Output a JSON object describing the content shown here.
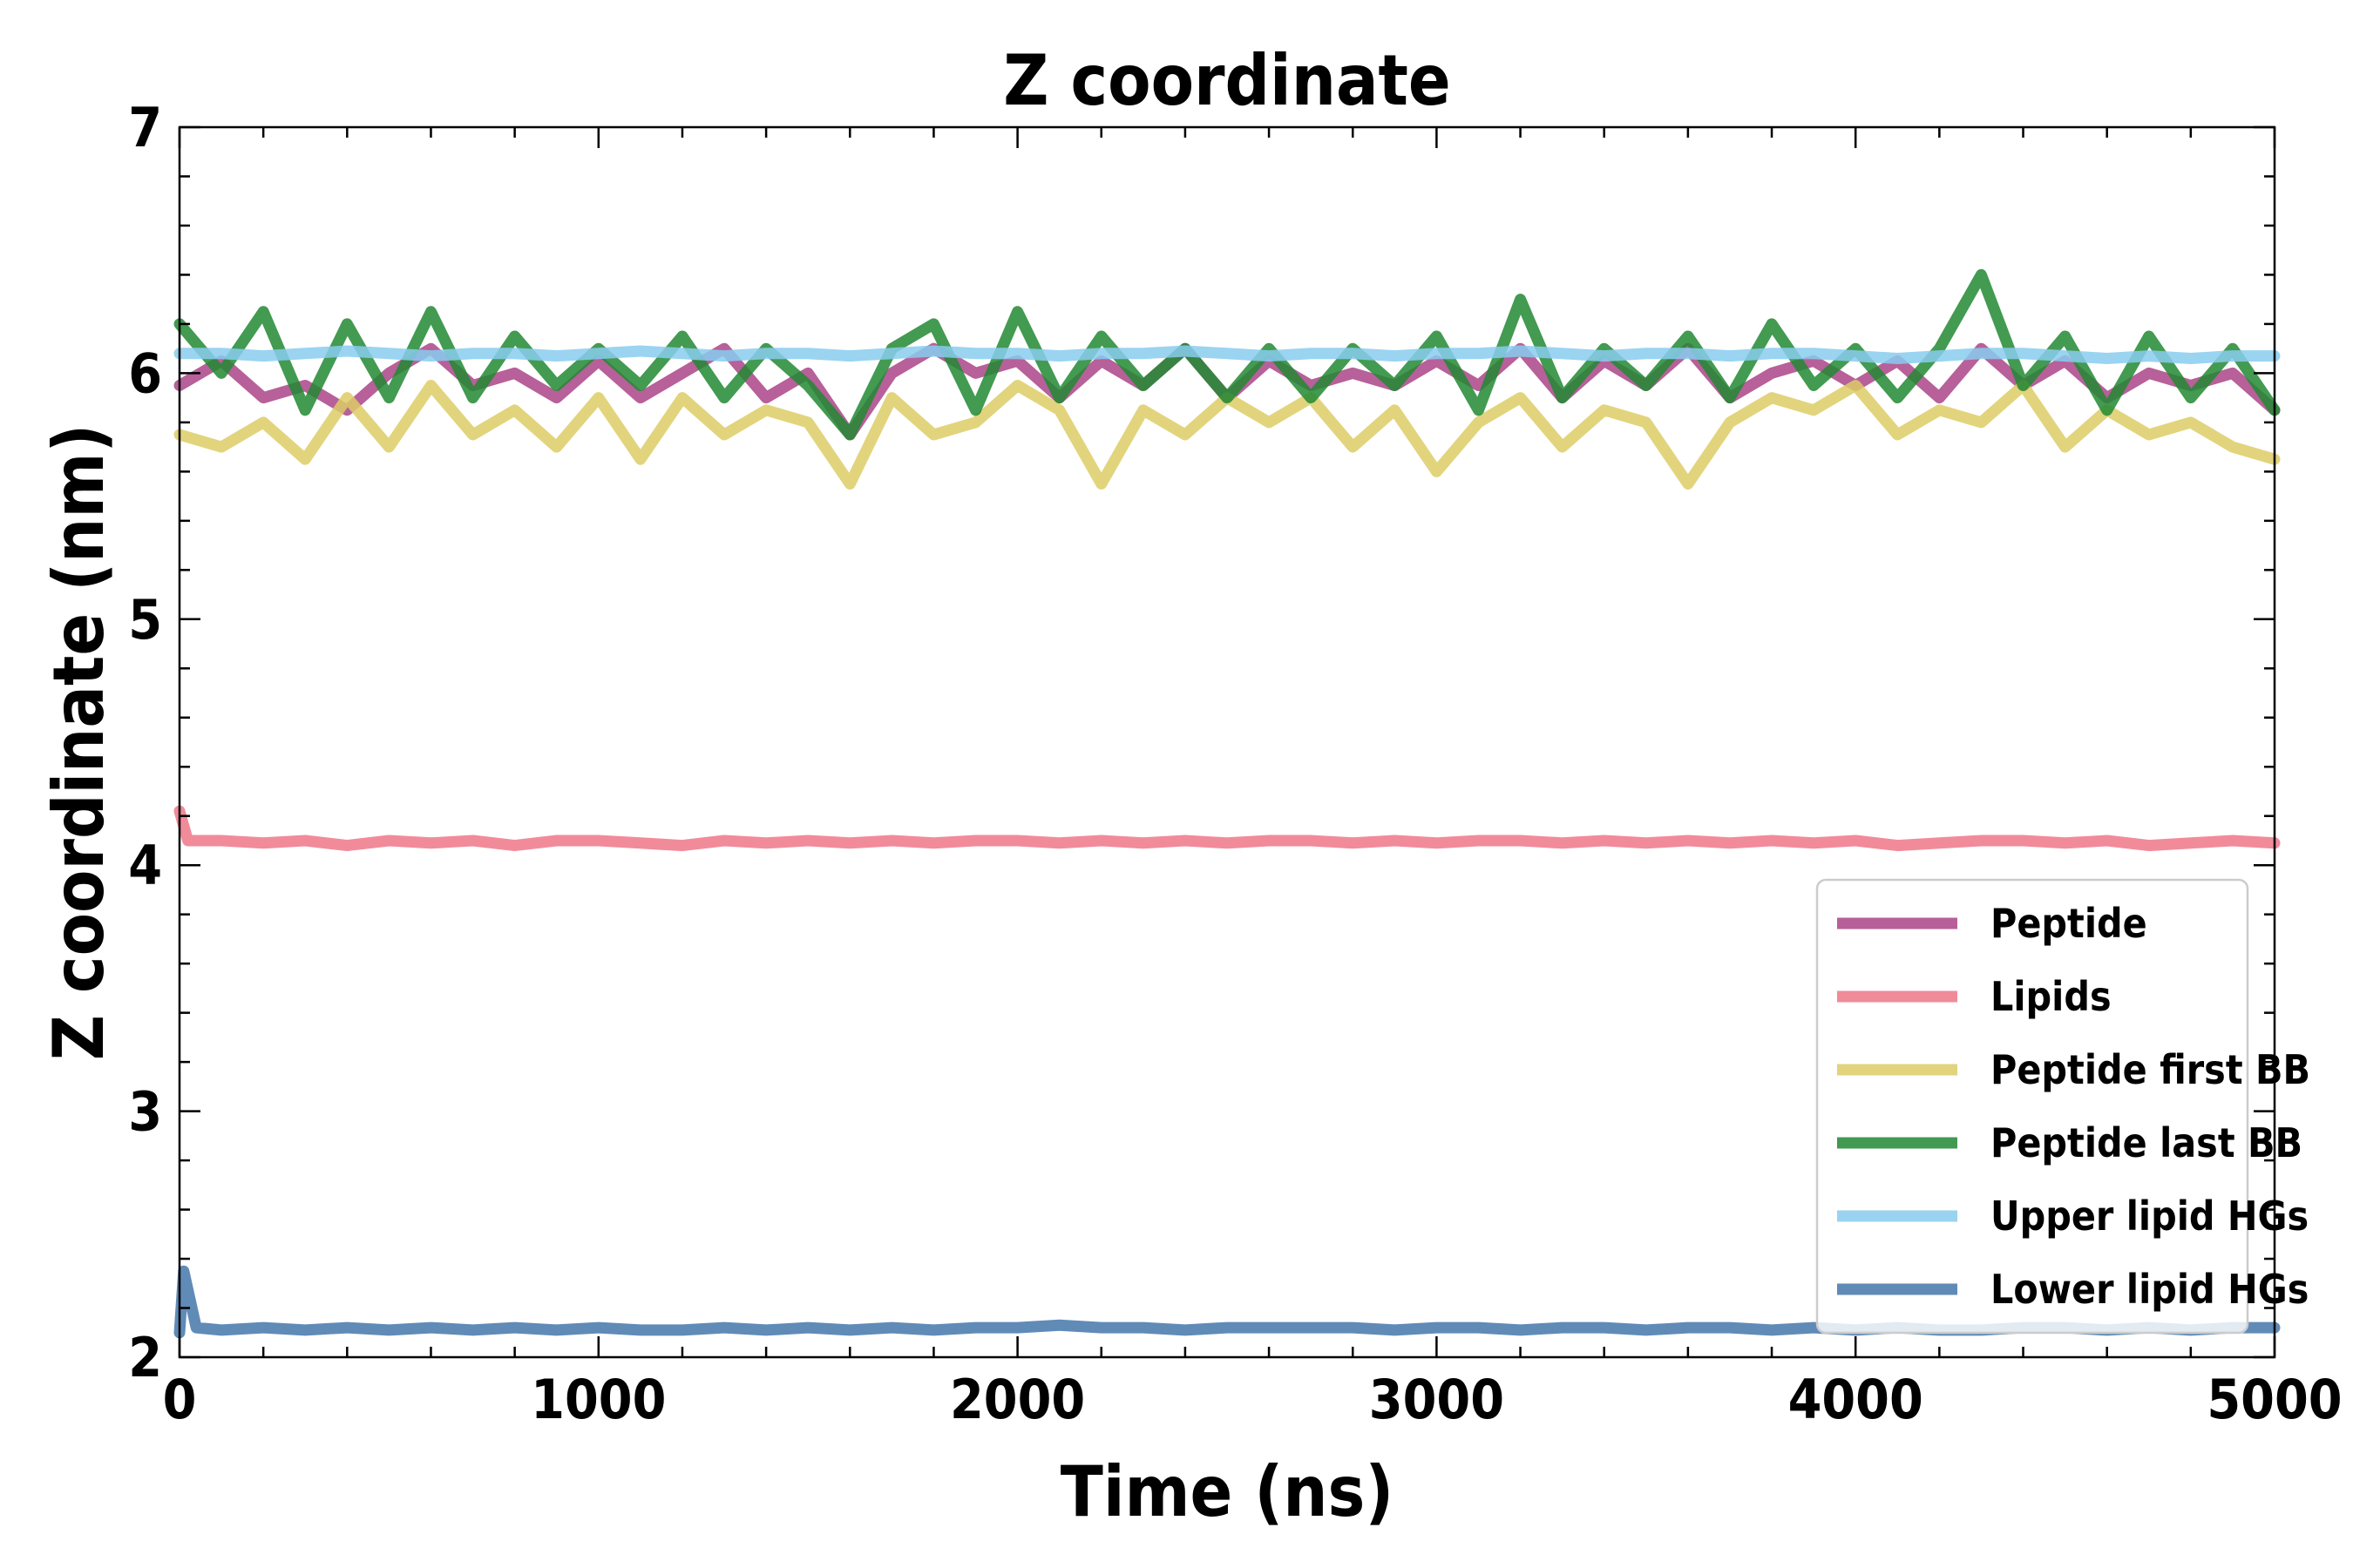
{
  "chart_data": {
    "type": "line",
    "title": "Z coordinate",
    "xlabel": "Time (ns)",
    "ylabel": "Z coordinate (nm)",
    "xlim": [
      0,
      5000
    ],
    "ylim": [
      2,
      7
    ],
    "xticks": [
      0,
      1000,
      2000,
      3000,
      4000,
      5000
    ],
    "yticks": [
      2,
      3,
      4,
      5,
      6,
      7
    ],
    "grid": false,
    "legend_position": "bottom-right",
    "series": [
      {
        "name": "Peptide",
        "color": "#aa4488",
        "x": [
          0,
          100,
          200,
          300,
          400,
          500,
          600,
          700,
          800,
          900,
          1000,
          1100,
          1200,
          1300,
          1400,
          1500,
          1600,
          1700,
          1800,
          1900,
          2000,
          2100,
          2200,
          2300,
          2400,
          2500,
          2600,
          2700,
          2800,
          2900,
          3000,
          3100,
          3200,
          3300,
          3400,
          3500,
          3600,
          3700,
          3800,
          3900,
          4000,
          4100,
          4200,
          4300,
          4400,
          4500,
          4600,
          4700,
          4800,
          4900,
          5000
        ],
        "y": [
          5.95,
          6.05,
          5.9,
          5.95,
          5.85,
          6.0,
          6.1,
          5.95,
          6.0,
          5.9,
          6.05,
          5.9,
          6.0,
          6.1,
          5.9,
          6.0,
          5.75,
          6.0,
          6.1,
          6.0,
          6.05,
          5.9,
          6.05,
          5.95,
          6.1,
          5.9,
          6.05,
          5.95,
          6.0,
          5.95,
          6.05,
          5.95,
          6.1,
          5.9,
          6.05,
          5.95,
          6.1,
          5.9,
          6.0,
          6.05,
          5.95,
          6.05,
          5.9,
          6.1,
          5.95,
          6.05,
          5.9,
          6.0,
          5.95,
          6.0,
          5.85
        ]
      },
      {
        "name": "Lipids",
        "color": "#ee7788",
        "x": [
          0,
          20,
          100,
          200,
          300,
          400,
          500,
          600,
          700,
          800,
          900,
          1000,
          1100,
          1200,
          1300,
          1400,
          1500,
          1600,
          1700,
          1800,
          1900,
          2000,
          2100,
          2200,
          2300,
          2400,
          2500,
          2600,
          2700,
          2800,
          2900,
          3000,
          3100,
          3200,
          3300,
          3400,
          3500,
          3600,
          3700,
          3800,
          3900,
          4000,
          4100,
          4200,
          4300,
          4400,
          4500,
          4600,
          4700,
          4800,
          4900,
          5000
        ],
        "y": [
          4.22,
          4.1,
          4.1,
          4.09,
          4.1,
          4.08,
          4.1,
          4.09,
          4.1,
          4.08,
          4.1,
          4.1,
          4.09,
          4.08,
          4.1,
          4.09,
          4.1,
          4.09,
          4.1,
          4.09,
          4.1,
          4.1,
          4.09,
          4.1,
          4.09,
          4.1,
          4.09,
          4.1,
          4.1,
          4.09,
          4.1,
          4.09,
          4.1,
          4.1,
          4.09,
          4.1,
          4.09,
          4.1,
          4.09,
          4.1,
          4.09,
          4.1,
          4.08,
          4.09,
          4.1,
          4.1,
          4.09,
          4.1,
          4.08,
          4.09,
          4.1,
          4.09
        ]
      },
      {
        "name": "Peptide first BB",
        "color": "#ddcc66",
        "x": [
          0,
          100,
          200,
          300,
          400,
          500,
          600,
          700,
          800,
          900,
          1000,
          1100,
          1200,
          1300,
          1400,
          1500,
          1600,
          1700,
          1800,
          1900,
          2000,
          2100,
          2200,
          2300,
          2400,
          2500,
          2600,
          2700,
          2800,
          2900,
          3000,
          3100,
          3200,
          3300,
          3400,
          3500,
          3600,
          3700,
          3800,
          3900,
          4000,
          4100,
          4200,
          4300,
          4400,
          4500,
          4600,
          4700,
          4800,
          4900,
          5000
        ],
        "y": [
          5.75,
          5.7,
          5.8,
          5.65,
          5.9,
          5.7,
          5.95,
          5.75,
          5.85,
          5.7,
          5.9,
          5.65,
          5.9,
          5.75,
          5.85,
          5.8,
          5.55,
          5.9,
          5.75,
          5.8,
          5.95,
          5.85,
          5.55,
          5.85,
          5.75,
          5.9,
          5.8,
          5.9,
          5.7,
          5.85,
          5.6,
          5.8,
          5.9,
          5.7,
          5.85,
          5.8,
          5.55,
          5.8,
          5.9,
          5.85,
          5.95,
          5.75,
          5.85,
          5.8,
          5.95,
          5.7,
          5.85,
          5.75,
          5.8,
          5.7,
          5.65
        ]
      },
      {
        "name": "Peptide last BB",
        "color": "#228833",
        "x": [
          0,
          100,
          200,
          300,
          400,
          500,
          600,
          700,
          800,
          900,
          1000,
          1100,
          1200,
          1300,
          1400,
          1500,
          1600,
          1700,
          1800,
          1900,
          2000,
          2100,
          2200,
          2300,
          2400,
          2500,
          2600,
          2700,
          2800,
          2900,
          3000,
          3100,
          3200,
          3300,
          3400,
          3500,
          3600,
          3700,
          3800,
          3900,
          4000,
          4100,
          4200,
          4300,
          4400,
          4500,
          4600,
          4700,
          4800,
          4900,
          5000
        ],
        "y": [
          6.2,
          6.0,
          6.25,
          5.85,
          6.2,
          5.9,
          6.25,
          5.9,
          6.15,
          5.95,
          6.1,
          5.95,
          6.15,
          5.9,
          6.1,
          5.95,
          5.75,
          6.1,
          6.2,
          5.85,
          6.25,
          5.9,
          6.15,
          5.95,
          6.1,
          5.9,
          6.1,
          5.9,
          6.1,
          5.95,
          6.15,
          5.85,
          6.3,
          5.9,
          6.1,
          5.95,
          6.15,
          5.9,
          6.2,
          5.95,
          6.1,
          5.9,
          6.1,
          6.4,
          5.95,
          6.15,
          5.85,
          6.15,
          5.9,
          6.1,
          5.85
        ]
      },
      {
        "name": "Upper lipid HGs",
        "color": "#88ccee",
        "x": [
          0,
          100,
          200,
          300,
          400,
          500,
          600,
          700,
          800,
          900,
          1000,
          1100,
          1200,
          1300,
          1400,
          1500,
          1600,
          1700,
          1800,
          1900,
          2000,
          2100,
          2200,
          2300,
          2400,
          2500,
          2600,
          2700,
          2800,
          2900,
          3000,
          3100,
          3200,
          3300,
          3400,
          3500,
          3600,
          3700,
          3800,
          3900,
          4000,
          4100,
          4200,
          4300,
          4400,
          4500,
          4600,
          4700,
          4800,
          4900,
          5000
        ],
        "y": [
          6.08,
          6.08,
          6.07,
          6.08,
          6.09,
          6.08,
          6.07,
          6.08,
          6.08,
          6.07,
          6.08,
          6.09,
          6.08,
          6.07,
          6.08,
          6.08,
          6.07,
          6.08,
          6.09,
          6.08,
          6.08,
          6.07,
          6.08,
          6.08,
          6.09,
          6.08,
          6.07,
          6.08,
          6.08,
          6.07,
          6.08,
          6.08,
          6.09,
          6.08,
          6.07,
          6.08,
          6.08,
          6.07,
          6.08,
          6.08,
          6.07,
          6.06,
          6.07,
          6.08,
          6.08,
          6.07,
          6.06,
          6.07,
          6.06,
          6.07,
          6.07
        ]
      },
      {
        "name": "Lower lipid HGs",
        "color": "#4477aa",
        "x": [
          0,
          10,
          40,
          100,
          200,
          300,
          400,
          500,
          600,
          700,
          800,
          900,
          1000,
          1100,
          1200,
          1300,
          1400,
          1500,
          1600,
          1700,
          1800,
          1900,
          2000,
          2100,
          2200,
          2300,
          2400,
          2500,
          2600,
          2700,
          2800,
          2900,
          3000,
          3100,
          3200,
          3300,
          3400,
          3500,
          3600,
          3700,
          3800,
          3900,
          4000,
          4100,
          4200,
          4300,
          4400,
          4500,
          4600,
          4700,
          4800,
          4900,
          5000
        ],
        "y": [
          2.1,
          2.35,
          2.12,
          2.11,
          2.12,
          2.11,
          2.12,
          2.11,
          2.12,
          2.11,
          2.12,
          2.11,
          2.12,
          2.11,
          2.11,
          2.12,
          2.11,
          2.12,
          2.11,
          2.12,
          2.11,
          2.12,
          2.12,
          2.13,
          2.12,
          2.12,
          2.11,
          2.12,
          2.12,
          2.12,
          2.12,
          2.11,
          2.12,
          2.12,
          2.11,
          2.12,
          2.12,
          2.11,
          2.12,
          2.12,
          2.11,
          2.12,
          2.11,
          2.12,
          2.11,
          2.11,
          2.12,
          2.12,
          2.11,
          2.12,
          2.11,
          2.12,
          2.12
        ]
      }
    ]
  }
}
